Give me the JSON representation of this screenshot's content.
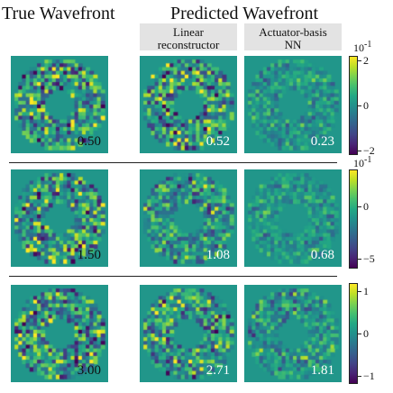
{
  "headers": {
    "true_col": "True Wavefront",
    "predicted_col": "Predicted Wavefront",
    "linear": [
      "Linear",
      "reconstructor"
    ],
    "nn": [
      "Actuator-basis",
      "NN"
    ]
  },
  "colormap": "viridis",
  "chart_data": [
    {
      "type": "heatmap",
      "row": 1,
      "panels": [
        {
          "column": "True Wavefront",
          "value_label": "0.50"
        },
        {
          "column": "Linear reconstructor",
          "value_label": "0.52"
        },
        {
          "column": "Actuator-basis NN",
          "value_label": "0.23"
        }
      ],
      "colorbar": {
        "exponent_label": "10",
        "exponent_sup": "-1",
        "range": [
          -2.2,
          2.2
        ],
        "ticks": [
          {
            "value": 2,
            "label": "2"
          },
          {
            "value": 0,
            "label": "0"
          },
          {
            "value": -2,
            "label": "−2"
          }
        ]
      }
    },
    {
      "type": "heatmap",
      "row": 2,
      "panels": [
        {
          "column": "True Wavefront",
          "value_label": "1.50"
        },
        {
          "column": "Linear reconstructor",
          "value_label": "1.08"
        },
        {
          "column": "Actuator-basis NN",
          "value_label": "0.68"
        }
      ],
      "colorbar": {
        "exponent_label": "10",
        "exponent_sup": "-1",
        "range": [
          -6,
          3.6
        ],
        "ticks": [
          {
            "value": 0,
            "label": "0"
          },
          {
            "value": -5,
            "label": "−5"
          }
        ]
      }
    },
    {
      "type": "heatmap",
      "row": 3,
      "panels": [
        {
          "column": "True Wavefront",
          "value_label": "3.00"
        },
        {
          "column": "Linear reconstructor",
          "value_label": "2.71"
        },
        {
          "column": "Actuator-basis NN",
          "value_label": "1.81"
        }
      ],
      "colorbar": {
        "exponent_label": "",
        "exponent_sup": "",
        "range": [
          -1.2,
          1.2
        ],
        "ticks": [
          {
            "value": 1,
            "label": "1"
          },
          {
            "value": 0,
            "label": "0"
          },
          {
            "value": -1,
            "label": "−1"
          }
        ]
      }
    }
  ]
}
